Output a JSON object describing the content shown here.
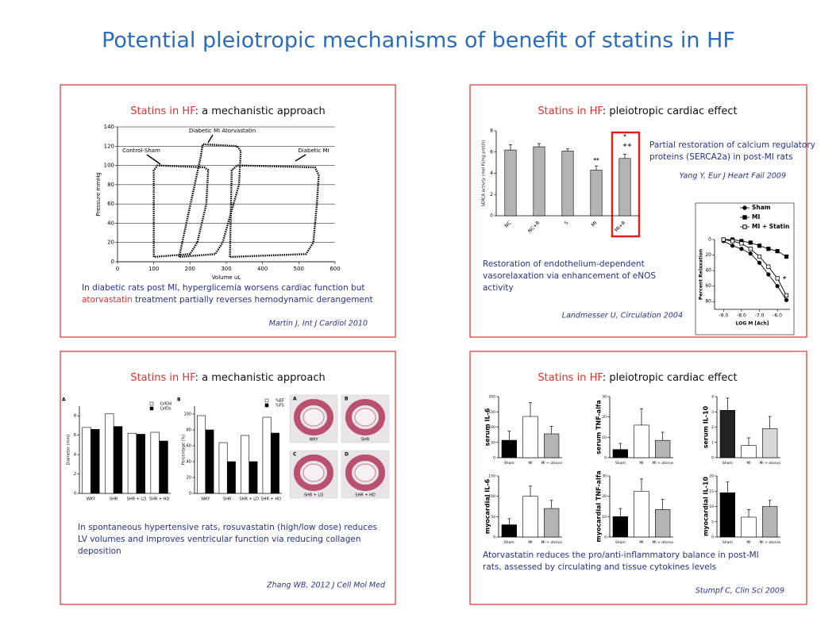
{
  "title": "Potential pleiotropic mechanisms of benefit of statins in HF",
  "panels": [
    {
      "heading": [
        "Statins in HF",
        ": a mechanistic approach"
      ],
      "charts": [
        {
          "type": "loop",
          "ylabel": "Pressure mmHg",
          "xlabel": "Volume uL",
          "xlim": [
            0,
            600
          ],
          "xticks": [
            0,
            100,
            200,
            300,
            400,
            500,
            600
          ],
          "ylim": [
            0,
            140
          ],
          "yticks": [
            0,
            20,
            40,
            60,
            80,
            100,
            120,
            140
          ],
          "grid": true,
          "annotations": [
            "Control-Sham",
            "Diabetic MI Atorvastatin",
            "Diabetic MI"
          ],
          "series": [
            {
              "color": "#000000",
              "x": [
                100,
                100,
                110,
                240,
                250,
                245,
                220,
                200,
                100
              ],
              "values": [
                5,
                95,
                100,
                98,
                95,
                60,
                20,
                8,
                5
              ]
            },
            {
              "color": "#000000",
              "x": [
                170,
                230,
                235,
                330,
                340,
                335,
                290,
                270,
                170
              ],
              "values": [
                5,
                110,
                122,
                120,
                115,
                80,
                20,
                8,
                5
              ]
            },
            {
              "color": "#000000",
              "x": [
                310,
                315,
                330,
                545,
                555,
                550,
                540,
                520,
                310
              ],
              "values": [
                5,
                95,
                100,
                98,
                90,
                60,
                20,
                8,
                5
              ]
            }
          ]
        }
      ],
      "caption": [
        "In diabetic rats post MI, hyperglicemia worsens cardiac function but",
        "atorvastatin",
        " treatment partially reverses hemodynamic derangement"
      ],
      "citation": "Martin J, Int J Cardiol 2010"
    },
    {
      "heading": [
        "Statins in HF",
        ": pleiotropic cardiac effect"
      ],
      "charts": [
        {
          "type": "bar",
          "ylabel": "SERCA activity (mol Pi/mg prot/h)",
          "categories": [
            "NC",
            "NC+R",
            "S",
            "MI",
            "MI+R"
          ],
          "values": [
            6.2,
            6.5,
            6.1,
            4.3,
            5.4
          ],
          "errors": [
            0.5,
            0.3,
            0.2,
            0.4,
            0.4
          ],
          "color": "#b4b4b4",
          "ylim": [
            0,
            8
          ],
          "yticks": [
            0,
            2,
            4,
            6,
            8
          ],
          "annotations": [
            "**",
            "*",
            "++"
          ]
        },
        {
          "type": "line",
          "ylabel": "Percent Relaxation",
          "xlabel": "LOG M [Ach]",
          "y_inverted": true,
          "x": [
            -9,
            -8.5,
            -8,
            -7.5,
            -7,
            -6.5,
            -6,
            -5.5
          ],
          "xlim": [
            -9.5,
            -5.3
          ],
          "xticks": [
            {
              "value": -9,
              "label": "-9.0"
            },
            {
              "value": -8,
              "label": "-8.0"
            },
            {
              "value": -7,
              "label": "-7.0"
            },
            {
              "value": -6,
              "label": "-6.0"
            }
          ],
          "ylim": [
            0,
            90
          ],
          "yticks": [
            0,
            20,
            40,
            60,
            80
          ],
          "annotations": [
            "#"
          ],
          "series": [
            {
              "name": "Sham",
              "color": "#000000",
              "marker": "circle",
              "fill": "#000000",
              "values": [
                2,
                8,
                12,
                18,
                30,
                45,
                60,
                78
              ]
            },
            {
              "name": "MI",
              "color": "#000000",
              "marker": "square",
              "fill": "#000000",
              "values": [
                0,
                0,
                2,
                4,
                8,
                12,
                15,
                22
              ]
            },
            {
              "name": "MI + Statin",
              "color": "#000000",
              "marker": "square",
              "fill": "#ffffff",
              "values": [
                0,
                2,
                5,
                12,
                22,
                35,
                50,
                72
              ]
            }
          ]
        }
      ],
      "notes": [
        {
          "lines": [
            "Partial restoration of calcium regulatory",
            "proteins (SERCA2a) in post-MI rats"
          ],
          "citation": "Yang Y, Eur J Heart Fail 2009"
        },
        {
          "lines": [
            "Restoration of endothelium-dependent",
            "vasorelaxation via enhancement of eNOS",
            "activity"
          ],
          "citation": "Landmesser U, Circulation 2004"
        }
      ]
    },
    {
      "heading": [
        "Statins in HF",
        ": a mechanistic approach"
      ],
      "charts": [
        {
          "type": "bar",
          "label": "A",
          "ylabel": "Diameter (mm)",
          "categories": [
            "WKY",
            "SHR",
            "SHR + LD",
            "SHR + HD"
          ],
          "ylim": [
            0,
            9
          ],
          "yticks": [
            0,
            2,
            4,
            6,
            8
          ],
          "series": [
            {
              "name": "LVIDd",
              "color": "#ffffff",
              "values": [
                6.8,
                8.2,
                6.2,
                6.3
              ]
            },
            {
              "name": "LVIDs",
              "color": "#000000",
              "values": [
                6.6,
                6.9,
                6.1,
                5.4
              ]
            }
          ]
        },
        {
          "type": "bar",
          "label": "B",
          "ylabel": "Percentage (%)",
          "categories": [
            "WKY",
            "SHR",
            "SHR + LD",
            "SHR + HD"
          ],
          "ylim": [
            0,
            110
          ],
          "yticks": [
            0,
            20,
            40,
            60,
            80,
            100
          ],
          "series": [
            {
              "name": "%EF",
              "color": "#ffffff",
              "values": [
                98,
                64,
                73,
                96
              ]
            },
            {
              "name": "%FS",
              "color": "#000000",
              "values": [
                80,
                40,
                40,
                76
              ]
            }
          ]
        }
      ],
      "images": [
        {
          "letter": "A",
          "label": "WKY"
        },
        {
          "letter": "B",
          "label": "SHR"
        },
        {
          "letter": "C",
          "label": "SHR + LD"
        },
        {
          "letter": "D",
          "label": "SHR + HD"
        }
      ],
      "caption": [
        "In spontaneous hypertensive rats, rosuvastatin (high/low dose) reduces",
        "LV volumes and improves ventricular function via reducing collagen",
        "deposition"
      ],
      "citation": "Zhang WB, 2012 J Cell Mol Med"
    },
    {
      "heading": [
        "Statins in HF",
        ": pleiotropic cardiac effect"
      ],
      "charts": [
        {
          "type": "bar",
          "ylabel": "serum IL-6",
          "categories": [
            "Sham",
            "MI",
            "MI + atorva"
          ],
          "colors": [
            "#000000",
            "#ffffff",
            "#b4b4b4"
          ],
          "values": [
            57,
            135,
            78
          ],
          "errors": [
            30,
            45,
            25
          ],
          "ylim": [
            0,
            200
          ],
          "yticks": [
            0,
            50,
            100,
            150,
            200
          ]
        },
        {
          "type": "bar",
          "ylabel": "serum TNF-alfa",
          "categories": [
            "Sham",
            "MI",
            "MI + atorva"
          ],
          "colors": [
            "#000000",
            "#ffffff",
            "#b4b4b4"
          ],
          "values": [
            4,
            16,
            8.5
          ],
          "errors": [
            3,
            8,
            4
          ],
          "ylim": [
            0,
            30
          ],
          "yticks": [
            0,
            10,
            20,
            30
          ]
        },
        {
          "type": "bar",
          "ylabel": "serum IL-10",
          "categories": [
            "Sham",
            "MI",
            "MI + atorva"
          ],
          "colors": [
            "#222222",
            "#ffffff",
            "#d8d8d8"
          ],
          "values": [
            3.1,
            0.8,
            1.9
          ],
          "errors": [
            0.8,
            0.5,
            0.8
          ],
          "ylim": [
            0,
            4
          ],
          "yticks": [
            0,
            1,
            2,
            3,
            4
          ]
        },
        {
          "type": "bar",
          "ylabel": "myocardial IL-6",
          "categories": [
            "Sham",
            "MI",
            "MI + atorva"
          ],
          "colors": [
            "#000000",
            "#ffffff",
            "#b4b4b4"
          ],
          "values": [
            30,
            100,
            70
          ],
          "errors": [
            15,
            25,
            20
          ],
          "ylim": [
            0,
            150
          ],
          "yticks": [
            0,
            50,
            100,
            150
          ]
        },
        {
          "type": "bar",
          "ylabel": "myocardial TNF-alfa",
          "categories": [
            "Sham",
            "MI",
            "MI + atorva"
          ],
          "colors": [
            "#000000",
            "#ffffff",
            "#b4b4b4"
          ],
          "values": [
            10,
            22.5,
            13.5
          ],
          "errors": [
            4,
            6,
            5
          ],
          "ylim": [
            0,
            30
          ],
          "yticks": [
            0,
            10,
            20,
            30
          ]
        },
        {
          "type": "bar",
          "ylabel": "myocardial IL-10",
          "categories": [
            "Sham",
            "MI",
            "MI + atorva"
          ],
          "colors": [
            "#000000",
            "#ffffff",
            "#b4b4b4"
          ],
          "values": [
            14.5,
            6.5,
            10
          ],
          "errors": [
            3.5,
            2.5,
            2
          ],
          "ylim": [
            0,
            20
          ],
          "yticks": [
            0,
            5,
            10,
            15,
            20
          ]
        }
      ],
      "caption": [
        "Atorvastatin reduces the pro/anti-inflammatory balance in post-MI",
        "rats, assessed by circulating and tissue cytokines levels"
      ],
      "citation": "Stumpf C, Clin Sci 2009"
    }
  ]
}
